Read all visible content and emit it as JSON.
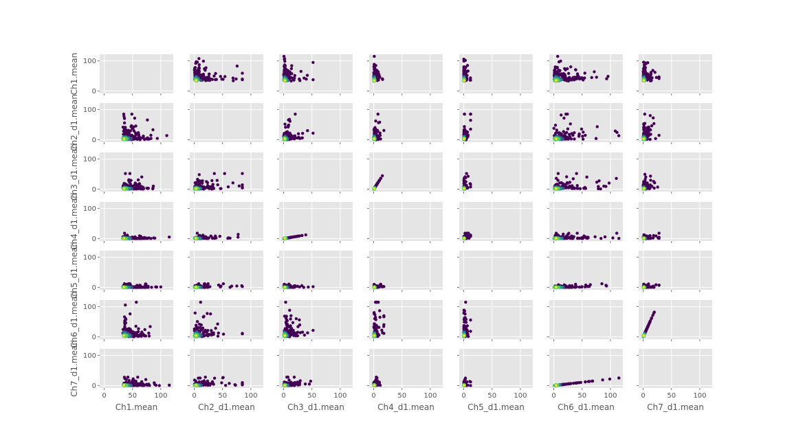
{
  "chart_data": {
    "type": "scatter",
    "layout": "pair-grid",
    "variables": [
      "Ch1.mean",
      "Ch2_d1.mean",
      "Ch3_d1.mean",
      "Ch4_d1.mean",
      "Ch5_d1.mean",
      "Ch6_d1.mean",
      "Ch7_d1.mean"
    ],
    "xlim": [
      -8,
      122
    ],
    "ylim": [
      -8,
      122
    ],
    "xticks": [
      0,
      50,
      100
    ],
    "yticks": [
      0,
      100
    ],
    "grid": true,
    "diagonal": "empty",
    "colormap": [
      "#440154",
      "#3b528b",
      "#21918c",
      "#5ec962",
      "#fde725"
    ],
    "panel_background": "#e5e5e5",
    "variable_ranges": [
      {
        "name": "Ch1.mean",
        "min": 25,
        "max": 115,
        "mode": 35
      },
      {
        "name": "Ch2_d1.mean",
        "min": 0,
        "max": 85,
        "mode": 3
      },
      {
        "name": "Ch3_d1.mean",
        "min": 0,
        "max": 52,
        "mode": 2
      },
      {
        "name": "Ch4_d1.mean",
        "min": 0,
        "max": 18,
        "mode": 1
      },
      {
        "name": "Ch5_d1.mean",
        "min": 0,
        "max": 12,
        "mode": 0.5
      },
      {
        "name": "Ch6_d1.mean",
        "min": 0,
        "max": 115,
        "mode": 4
      },
      {
        "name": "Ch7_d1.mean",
        "min": 0,
        "max": 28,
        "mode": 1
      }
    ]
  }
}
